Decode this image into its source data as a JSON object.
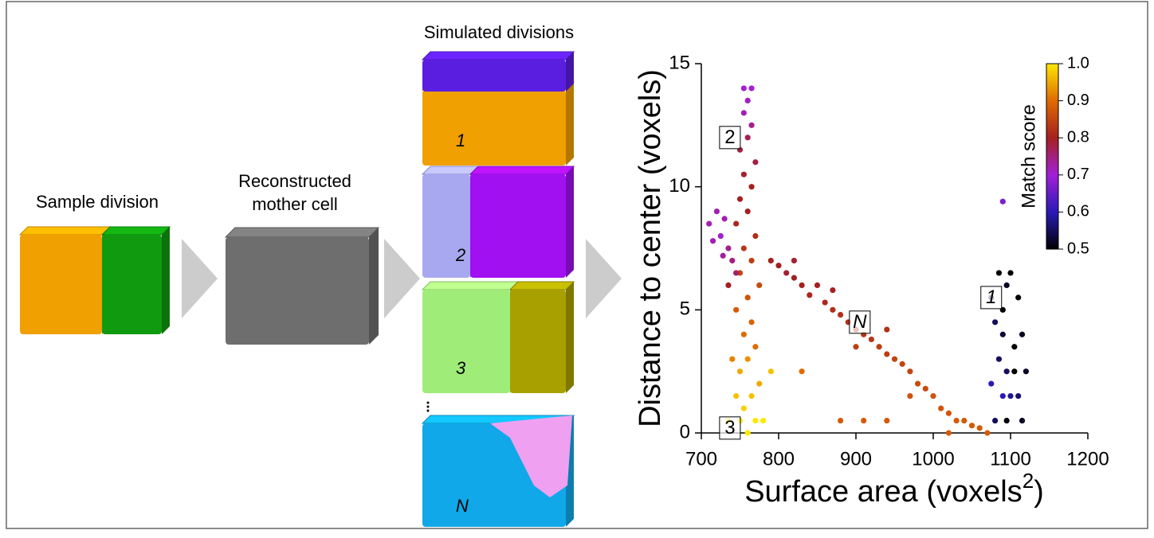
{
  "figure": {
    "sample_label": "Sample division",
    "mother_label": [
      "Reconstructed",
      "mother cell"
    ],
    "simulated_title": "Simulated divisions",
    "division_labels": [
      "1",
      "2",
      "3",
      "N"
    ]
  },
  "chart_data": {
    "type": "scatter",
    "xlabel": "Surface area (voxels",
    "xlabel_sup": "2",
    "xlabel_end": ")",
    "ylabel": "Distance to center (voxels)",
    "xlim": [
      700,
      1200
    ],
    "ylim": [
      0,
      15
    ],
    "xticks": [
      700,
      800,
      900,
      1000,
      1100,
      1200
    ],
    "yticks": [
      0,
      5,
      10,
      15
    ],
    "series": [
      {
        "x": [
          760,
          750,
          770,
          755,
          765,
          745,
          775,
          750,
          760,
          740,
          770,
          755,
          765,
          745,
          760,
          775,
          750,
          765,
          755,
          770,
          745,
          760,
          750,
          765,
          755,
          770,
          750,
          760,
          765,
          755,
          760,
          765,
          755,
          780,
          790,
          735,
          710,
          720,
          725,
          715,
          730,
          735,
          740,
          728,
          745,
          735,
          790,
          800,
          810,
          820,
          830,
          840,
          850,
          860,
          870,
          880,
          890,
          900,
          910,
          920,
          930,
          940,
          950,
          960,
          970,
          980,
          990,
          1000,
          1010,
          1020,
          1030,
          1040,
          1050,
          1060,
          1070,
          1020,
          820,
          870,
          900,
          940,
          970,
          830,
          880,
          910,
          940,
          1075,
          1085,
          1095,
          1100,
          1080,
          1090,
          1110,
          1115,
          1085,
          1095,
          1105,
          1120,
          1075,
          1090,
          1100,
          1110,
          1080,
          1095,
          1115,
          1090,
          1105,
          1090
        ],
        "values": [
          0,
          0.5,
          0.5,
          1,
          1.5,
          1.5,
          2,
          2.5,
          3,
          3,
          3.5,
          4,
          4.5,
          5,
          5.5,
          6,
          6.5,
          7,
          7.5,
          8,
          8.5,
          9,
          9.5,
          10,
          10.5,
          11,
          11.5,
          12,
          12.5,
          13,
          13.5,
          14,
          14,
          0.5,
          2.5,
          0.5,
          8.5,
          9,
          8,
          7.8,
          8.7,
          7.5,
          7,
          7.2,
          6.5,
          6,
          7,
          6.8,
          6.5,
          6.3,
          6,
          5.6,
          6,
          5.3,
          5,
          4.8,
          4.5,
          4.2,
          4,
          3.8,
          3.5,
          3.2,
          3,
          2.8,
          2.5,
          2,
          1.8,
          1.5,
          1,
          0.8,
          0.5,
          0.5,
          0.3,
          0.2,
          0,
          0,
          7,
          5.8,
          3.5,
          4.2,
          1.5,
          2.5,
          0.5,
          0.5,
          0.5,
          5.5,
          6.5,
          6,
          6.5,
          4.5,
          4,
          5.5,
          4,
          3,
          2.5,
          2.5,
          2.5,
          2,
          1.5,
          1.5,
          1.5,
          0.5,
          0.5,
          0.5,
          5,
          3.5,
          9.4
        ],
        "color_values": [
          1,
          1,
          1,
          0.98,
          0.97,
          0.97,
          0.95,
          0.95,
          0.93,
          0.92,
          0.9,
          0.9,
          0.89,
          0.88,
          0.87,
          0.86,
          0.85,
          0.84,
          0.83,
          0.82,
          0.81,
          0.8,
          0.8,
          0.8,
          0.79,
          0.78,
          0.78,
          0.77,
          0.74,
          0.72,
          0.71,
          0.7,
          0.7,
          1,
          0.97,
          1,
          0.72,
          0.72,
          0.71,
          0.72,
          0.72,
          0.74,
          0.75,
          0.73,
          0.76,
          0.8,
          0.8,
          0.8,
          0.79,
          0.8,
          0.8,
          0.81,
          0.8,
          0.81,
          0.82,
          0.82,
          0.82,
          0.83,
          0.83,
          0.83,
          0.84,
          0.84,
          0.85,
          0.85,
          0.85,
          0.86,
          0.86,
          0.87,
          0.87,
          0.87,
          0.88,
          0.88,
          0.88,
          0.88,
          0.88,
          0.88,
          0.79,
          0.8,
          0.84,
          0.82,
          0.87,
          0.9,
          0.88,
          0.88,
          0.88,
          0.55,
          0.5,
          0.52,
          0.5,
          0.55,
          0.53,
          0.5,
          0.52,
          0.55,
          0.55,
          0.5,
          0.52,
          0.6,
          0.6,
          0.58,
          0.56,
          0.55,
          0.5,
          0.52,
          0.5,
          0.5,
          0.67
        ]
      }
    ],
    "colorbar": {
      "label": "Match score",
      "lim": [
        0.5,
        1
      ],
      "ticks": [
        0.5,
        0.6,
        0.7,
        0.8,
        0.9,
        {
          "value": 1,
          "label": "1.0"
        }
      ],
      "colors": [
        "#000000",
        "#2a1ab8",
        "#a21fd8",
        "#a52020",
        "#e06a00",
        "#ffe800"
      ]
    },
    "annotations": [
      {
        "text": "2",
        "x": 737,
        "y": 12
      },
      {
        "text": "N",
        "x": 905,
        "y": 4.5
      },
      {
        "text": "1",
        "x": 1075,
        "y": 5.5
      },
      {
        "text": "3",
        "x": 737,
        "y": 0.2
      }
    ]
  }
}
